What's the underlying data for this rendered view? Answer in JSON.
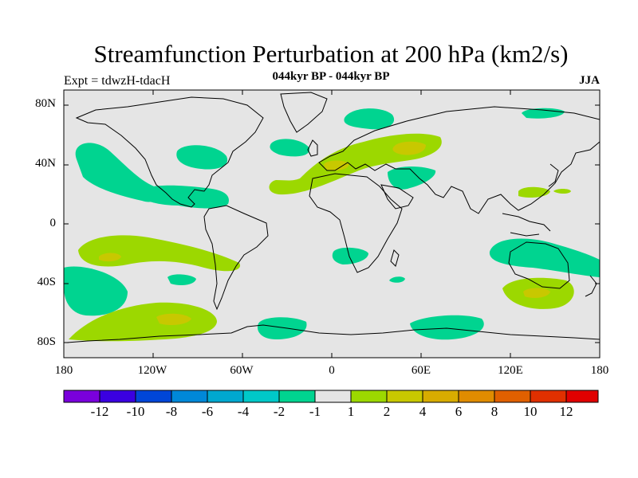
{
  "title": "Streamfunction Perturbation at 200 hPa (km2/s)",
  "subtitle": "044kyr BP - 044kyr BP",
  "left_label": "Expt = tdwzH-tdacH",
  "right_label": "JJA",
  "lat_labels": [
    "80N",
    "40N",
    "0",
    "40S",
    "80S"
  ],
  "lon_labels": [
    "180",
    "120W",
    "60W",
    "0",
    "60E",
    "120E",
    "180"
  ],
  "colorbar": {
    "colors": [
      "#7a00dc",
      "#3a00e0",
      "#0046d8",
      "#0088d8",
      "#00a8d0",
      "#00c8c8",
      "#00d490",
      "#e5e5e5",
      "#9cd800",
      "#c8c800",
      "#d8ac00",
      "#e08c00",
      "#e06000",
      "#e03000",
      "#e00000"
    ],
    "labels": [
      "-12",
      "-10",
      "-8",
      "-6",
      "-4",
      "-2",
      "-1",
      "1",
      "2",
      "4",
      "6",
      "8",
      "10",
      "12"
    ]
  },
  "colors": {
    "background": "#e5e5e5",
    "negative_fill": "#00d490",
    "positive_fill": "#9cd800",
    "positive_core": "#c8c800",
    "coast": "#000000"
  }
}
